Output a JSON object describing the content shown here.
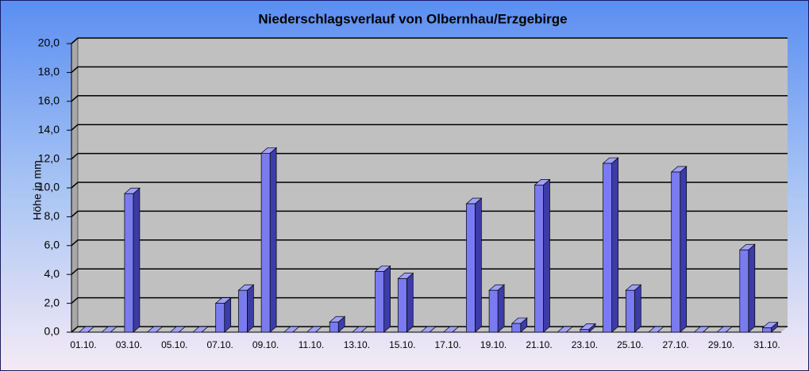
{
  "chart_data": {
    "type": "bar",
    "title": "Niederschlagsverlauf von Olbernhau/Erzgebirge",
    "y_label": "Höhe in  mm",
    "categories": [
      "01.10.",
      null,
      "03.10.",
      null,
      "05.10.",
      null,
      "07.10.",
      null,
      "09.10.",
      null,
      "11.10.",
      null,
      "13.10.",
      null,
      "15.10.",
      null,
      "17.10.",
      null,
      "19.10.",
      null,
      "21.10.",
      null,
      "23.10.",
      null,
      "25.10.",
      null,
      "27.10.",
      null,
      "29.10.",
      null,
      "31.10."
    ],
    "values": [
      0,
      0,
      9.6,
      0,
      0,
      0,
      2.0,
      2.9,
      12.4,
      0,
      0,
      0.7,
      0,
      4.2,
      3.7,
      0,
      0,
      8.9,
      2.9,
      0.6,
      10.2,
      0,
      0.2,
      11.7,
      2.9,
      0,
      11.1,
      0,
      0,
      5.7,
      0.3
    ],
    "color": "#7b7bf0",
    "ylim": [
      0,
      20
    ],
    "yticks": [
      {
        "value": 0,
        "label": "0,0"
      },
      {
        "value": 2,
        "label": "2,0"
      },
      {
        "value": 4,
        "label": "4,0"
      },
      {
        "value": 6,
        "label": "6,0"
      },
      {
        "value": 8,
        "label": "8,0"
      },
      {
        "value": 10,
        "label": "10,0"
      },
      {
        "value": 12,
        "label": "12,0"
      },
      {
        "value": 14,
        "label": "14,0"
      },
      {
        "value": 16,
        "label": "16,0"
      },
      {
        "value": 18,
        "label": "18,0"
      },
      {
        "value": 20,
        "label": "20,0"
      }
    ],
    "grid": true
  }
}
